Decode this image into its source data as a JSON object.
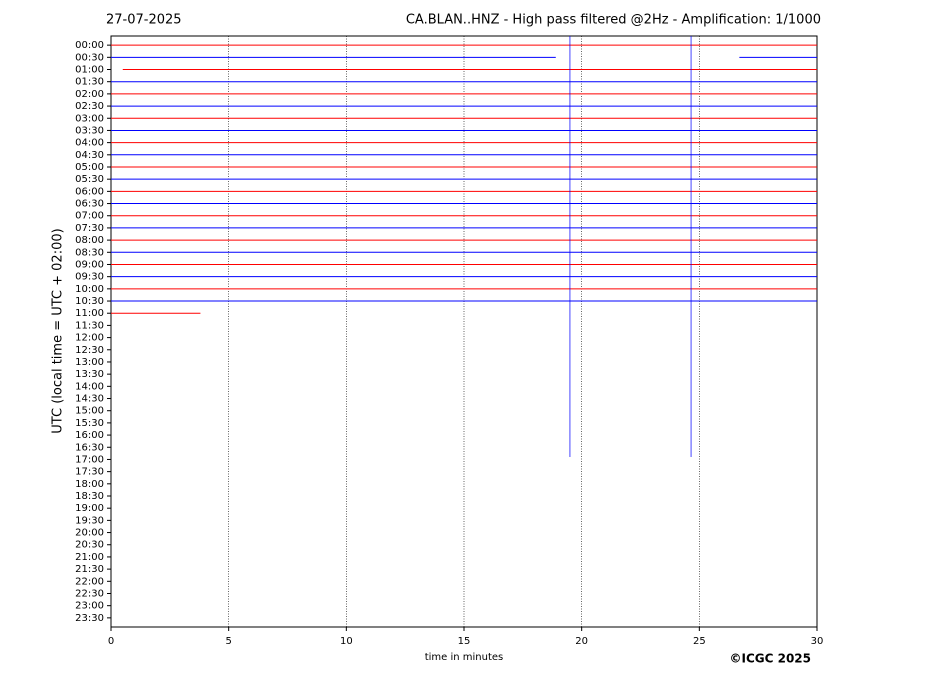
{
  "chart_data": {
    "type": "helicorder",
    "date": "27-07-2025",
    "title": "CA.BLAN..HNZ - High pass filtered @2Hz - Amplification: 1/1000",
    "x_label": "time in minutes",
    "y_label": "UTC (local time = UTC + 02:00)",
    "copyright": "©ICGC 2025",
    "categories": [
      "00:00",
      "00:30",
      "01:00",
      "01:30",
      "02:00",
      "02:30",
      "03:00",
      "03:30",
      "04:00",
      "04:30",
      "05:00",
      "05:30",
      "06:00",
      "06:30",
      "07:00",
      "07:30",
      "08:00",
      "08:30",
      "09:00",
      "09:30",
      "10:00",
      "10:30",
      "11:00",
      "11:30",
      "12:00",
      "12:30",
      "13:00",
      "13:30",
      "14:00",
      "14:30",
      "15:00",
      "15:30",
      "16:00",
      "16:30",
      "17:00",
      "17:30",
      "18:00",
      "18:30",
      "19:00",
      "19:30",
      "20:00",
      "20:30",
      "21:00",
      "21:30",
      "22:00",
      "22:30",
      "23:00",
      "23:30"
    ],
    "xlim": [
      0,
      30
    ],
    "xticks": [
      0,
      5,
      10,
      15,
      20,
      25,
      30
    ],
    "ylim": [
      -0.75,
      47.75
    ],
    "y_inverted": true,
    "grid": true,
    "colors": [
      "#ff0000",
      "#0000ff"
    ],
    "traces": [
      [
        0,
        0,
        30
      ],
      [
        1,
        0,
        18.9
      ],
      [
        1,
        26.7,
        30
      ],
      [
        2,
        0.5,
        30
      ],
      [
        3,
        0,
        30
      ],
      [
        4,
        0,
        30
      ],
      [
        5,
        0,
        30
      ],
      [
        6,
        0,
        30
      ],
      [
        7,
        0,
        30
      ],
      [
        8,
        0,
        30
      ],
      [
        9,
        0,
        30
      ],
      [
        10,
        0,
        30
      ],
      [
        11,
        0,
        30
      ],
      [
        12,
        0,
        30
      ],
      [
        13,
        0,
        30
      ],
      [
        14,
        0,
        30
      ],
      [
        15,
        0,
        30
      ],
      [
        16,
        0,
        30
      ],
      [
        17,
        0,
        30
      ],
      [
        18,
        0,
        30
      ],
      [
        19,
        0,
        30
      ],
      [
        20,
        0,
        30
      ],
      [
        21,
        0,
        30
      ],
      [
        22,
        0,
        3.8
      ]
    ],
    "events": [
      {
        "minute": 19.5,
        "until": 33.8
      },
      {
        "minute": 24.65,
        "until": 33.8
      }
    ]
  }
}
